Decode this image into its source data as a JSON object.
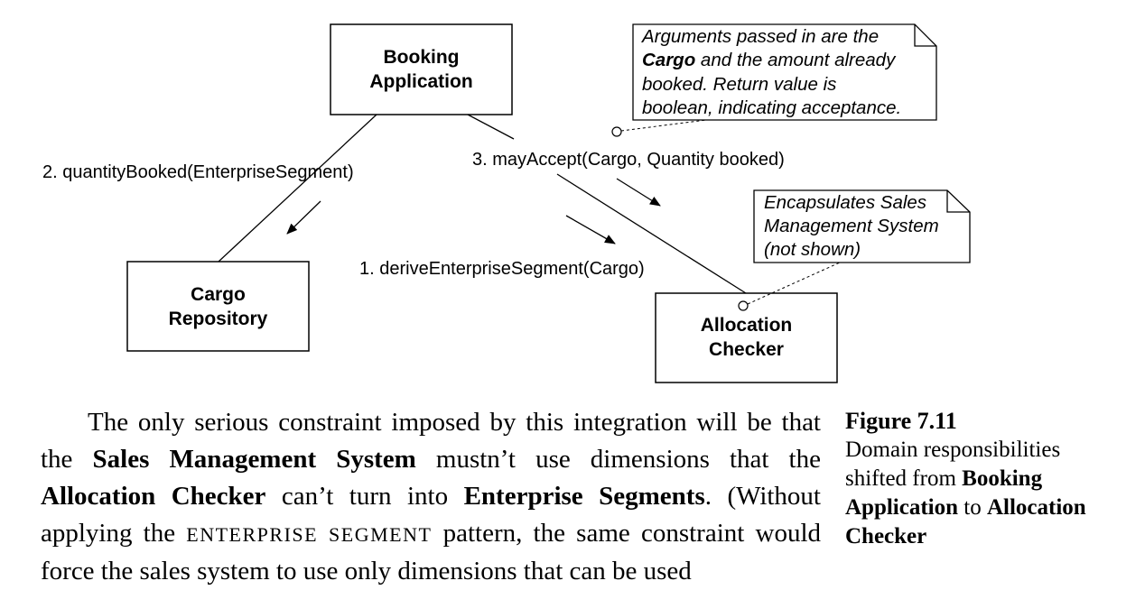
{
  "diagram": {
    "objects": {
      "booking": [
        "Booking",
        "Application"
      ],
      "cargo_repo": [
        "Cargo",
        "Repository"
      ],
      "allocation": [
        "Allocation",
        "Checker"
      ]
    },
    "messages": {
      "m1": "1. deriveEnterpriseSegment(Cargo)",
      "m2": "2. quantityBooked(EnterpriseSegment)",
      "m3": "3. mayAccept(Cargo, Quantity booked)"
    },
    "note1": {
      "line1": "Arguments passed in are the",
      "line2_bold": "Cargo",
      "line2_rest": " and the amount already",
      "line3": "booked. Return value is",
      "line4": "boolean, indicating acceptance."
    },
    "note2": {
      "line1": "Encapsulates Sales",
      "line2": "Management System",
      "line3": "(not shown)"
    }
  },
  "body": {
    "s1": "The only serious constraint imposed by this integration will be that the ",
    "b1": "Sales Management System",
    "s2": " mustn’t use dimensions that the ",
    "b2": "Allocation Checker",
    "s3": " can’t turn into ",
    "b3": "Enterprise Segments",
    "s4": ". (Without applying the ",
    "sc1": "ENTERPRISE SEGMENT",
    "s5": " pattern, the same constraint would force the sales system to use only dimensions that can be used"
  },
  "caption": {
    "figure": "Figure 7.11",
    "t1": "Domain responsibilities shifted from ",
    "b1": "Booking Application",
    "t2": " to ",
    "b2": "Allocation Checker"
  }
}
